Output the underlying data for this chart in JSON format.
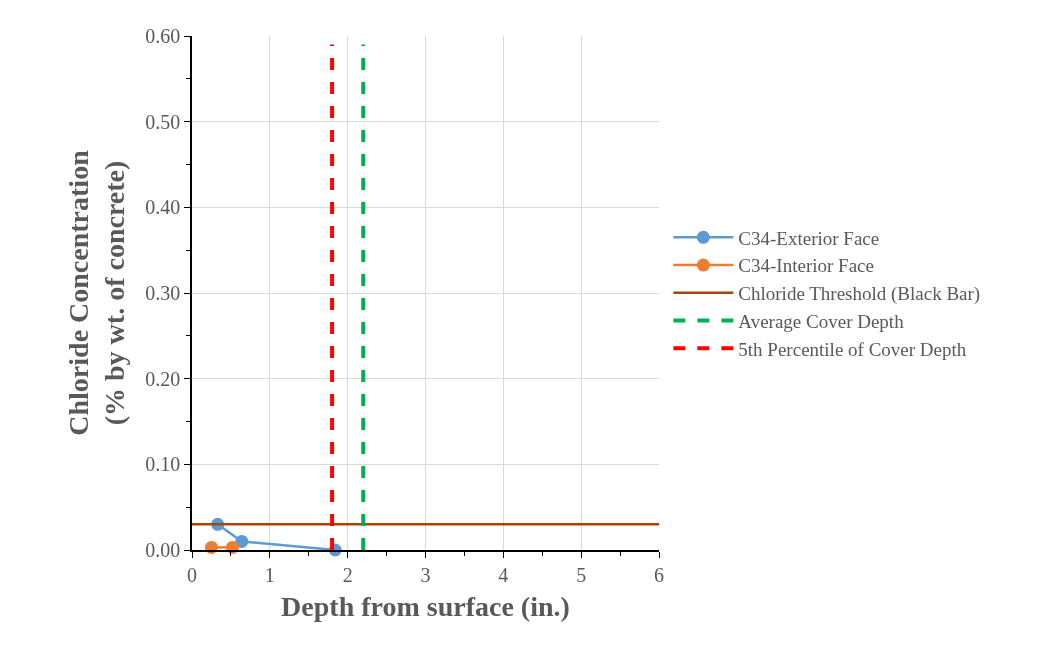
{
  "chart_data": {
    "type": "line",
    "xlabel": "Depth from surface (in.)",
    "ylabel": "Chloride Concentration\n(% by wt. of concrete)",
    "xlim": [
      0,
      6
    ],
    "xticks": [
      0,
      1,
      2,
      3,
      4,
      5,
      6
    ],
    "ylim": [
      0,
      0.6
    ],
    "yticks": [
      {
        "value": 0,
        "label": "0.00"
      },
      {
        "value": 0.1,
        "label": "0.10"
      },
      {
        "value": 0.2,
        "label": "0.20"
      },
      {
        "value": 0.3,
        "label": "0.30"
      },
      {
        "value": 0.4,
        "label": "0.40"
      },
      {
        "value": 0.5,
        "label": "0.50"
      },
      {
        "value": 0.6,
        "label": "0.60"
      }
    ],
    "grid": true,
    "legend": "right",
    "marker": "circle",
    "series": [
      {
        "name": "C34-Exterior Face",
        "color": "#5b9bd5",
        "x": [
          0.33,
          0.64,
          1.84
        ],
        "values": [
          0.03,
          0.01,
          0.0
        ]
      },
      {
        "name": "C34-Interior Face",
        "color": "#ed7d31",
        "x": [
          0.25,
          0.52
        ],
        "values": [
          0.003,
          0.003
        ]
      },
      {
        "name": "Chloride Threshold (Black Bar)",
        "color": "#9e480e",
        "marker": "none",
        "x": [
          0,
          6
        ],
        "values": [
          0.03,
          0.03
        ]
      },
      {
        "name": "Average Cover Depth",
        "color": "#00b050",
        "marker": "none",
        "line_style": "dashed",
        "x": [
          2.2,
          2.2
        ],
        "values": [
          0,
          0.59
        ]
      },
      {
        "name": "5th Percentile of Cover Depth",
        "color": "#ff0000",
        "marker": "none",
        "line_style": "dashed",
        "x": [
          1.8,
          1.8
        ],
        "values": [
          0,
          0.59
        ]
      }
    ]
  }
}
